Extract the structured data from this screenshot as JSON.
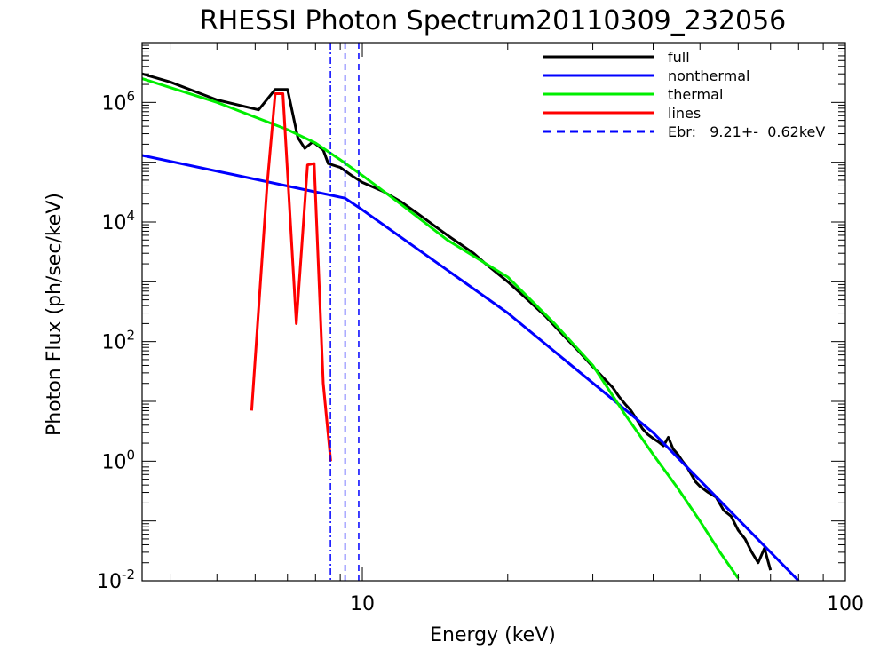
{
  "chart_data": {
    "type": "line",
    "title": "RHESSI Photon Spectrum20110309_232056",
    "xlabel": "Energy (keV)",
    "ylabel": "Photon Flux (ph/sec/keV)",
    "xscale": "log",
    "yscale": "log",
    "xlim": [
      3.5,
      100
    ],
    "ylim": [
      0.01,
      10000000
    ],
    "x_ticks": [
      {
        "value": 10,
        "label": "10"
      },
      {
        "value": 100,
        "label": "100"
      }
    ],
    "y_ticks": [
      {
        "value": 0.01,
        "base": "10",
        "exp": "-2"
      },
      {
        "value": 1,
        "base": "10",
        "exp": "0"
      },
      {
        "value": 100,
        "base": "10",
        "exp": "2"
      },
      {
        "value": 10000,
        "base": "10",
        "exp": "4"
      },
      {
        "value": 1000000,
        "base": "10",
        "exp": "6"
      }
    ],
    "legend_position": "top-right",
    "series": [
      {
        "name": "full",
        "color": "#000000",
        "style": "solid",
        "points": [
          [
            3.5,
            3000000
          ],
          [
            4,
            2200000
          ],
          [
            5,
            1100000
          ],
          [
            6.1,
            750000
          ],
          [
            6.6,
            1650000
          ],
          [
            7,
            1650000
          ],
          [
            7.35,
            260000
          ],
          [
            7.6,
            170000
          ],
          [
            7.9,
            220000
          ],
          [
            8.3,
            160000
          ],
          [
            8.5,
            95000
          ],
          [
            9,
            82000
          ],
          [
            9.5,
            60000
          ],
          [
            10,
            46000
          ],
          [
            11,
            33000
          ],
          [
            12,
            22000
          ],
          [
            13,
            14000
          ],
          [
            14,
            9000
          ],
          [
            15,
            6000
          ],
          [
            16,
            4200
          ],
          [
            17,
            3000
          ],
          [
            18,
            2000
          ],
          [
            20,
            1000
          ],
          [
            22,
            500
          ],
          [
            24,
            260
          ],
          [
            26,
            130
          ],
          [
            28,
            70
          ],
          [
            30,
            38
          ],
          [
            31,
            29
          ],
          [
            32,
            22
          ],
          [
            33,
            17
          ],
          [
            34,
            12
          ],
          [
            35,
            9
          ],
          [
            36,
            7
          ],
          [
            37,
            5
          ],
          [
            38,
            3.5
          ],
          [
            39,
            2.8
          ],
          [
            40,
            2.4
          ],
          [
            41,
            2.1
          ],
          [
            42,
            1.8
          ],
          [
            43,
            2.5
          ],
          [
            44,
            1.6
          ],
          [
            45,
            1.3
          ],
          [
            46,
            1.0
          ],
          [
            47,
            0.8
          ],
          [
            48,
            0.6
          ],
          [
            49,
            0.45
          ],
          [
            50,
            0.38
          ],
          [
            52,
            0.3
          ],
          [
            54,
            0.25
          ],
          [
            56,
            0.15
          ],
          [
            58,
            0.12
          ],
          [
            60,
            0.07
          ],
          [
            62,
            0.05
          ],
          [
            64,
            0.03
          ],
          [
            66,
            0.02
          ],
          [
            68,
            0.035
          ],
          [
            70,
            0.015
          ]
        ]
      },
      {
        "name": "nonthermal",
        "color": "#0000ff",
        "style": "solid",
        "points": [
          [
            3.5,
            130000
          ],
          [
            9.21,
            25000
          ],
          [
            10,
            16000
          ],
          [
            20,
            300
          ],
          [
            40,
            3
          ],
          [
            80,
            0.01
          ]
        ]
      },
      {
        "name": "thermal",
        "color": "#00ee00",
        "style": "solid",
        "points": [
          [
            3.5,
            2500000
          ],
          [
            5,
            1000000
          ],
          [
            7,
            350000
          ],
          [
            8,
            210000
          ],
          [
            9,
            110000
          ],
          [
            10,
            60000
          ],
          [
            12,
            20000
          ],
          [
            15,
            5000
          ],
          [
            20,
            1200
          ],
          [
            25,
            200
          ],
          [
            30,
            40
          ],
          [
            35,
            6
          ],
          [
            40,
            1.3
          ],
          [
            45,
            0.35
          ],
          [
            50,
            0.1
          ],
          [
            55,
            0.03
          ],
          [
            60,
            0.011
          ]
        ]
      },
      {
        "name": "lines",
        "color": "#ff0000",
        "style": "solid",
        "points": [
          [
            5.9,
            7
          ],
          [
            6.35,
            40000
          ],
          [
            6.6,
            1400000
          ],
          [
            6.85,
            1400000
          ],
          [
            7.3,
            200
          ],
          [
            7.7,
            90000
          ],
          [
            7.95,
            95000
          ],
          [
            8.3,
            20
          ],
          [
            8.6,
            1
          ]
        ]
      }
    ],
    "vlines": [
      {
        "x": 9.21,
        "color": "#0000ff",
        "style": "dashed"
      },
      {
        "x": 8.59,
        "color": "#0000ff",
        "style": "dashdot"
      },
      {
        "x": 9.83,
        "color": "#0000ff",
        "style": "dashed"
      }
    ],
    "legend": [
      {
        "label": "full",
        "color": "#000000",
        "style": "solid"
      },
      {
        "label": "nonthermal",
        "color": "#0000ff",
        "style": "solid"
      },
      {
        "label": "thermal",
        "color": "#00ee00",
        "style": "solid"
      },
      {
        "label": "lines",
        "color": "#ff0000",
        "style": "solid"
      },
      {
        "label": "Ebr:   9.21+-  0.62keV",
        "color": "#0000ff",
        "style": "dashed"
      }
    ]
  }
}
